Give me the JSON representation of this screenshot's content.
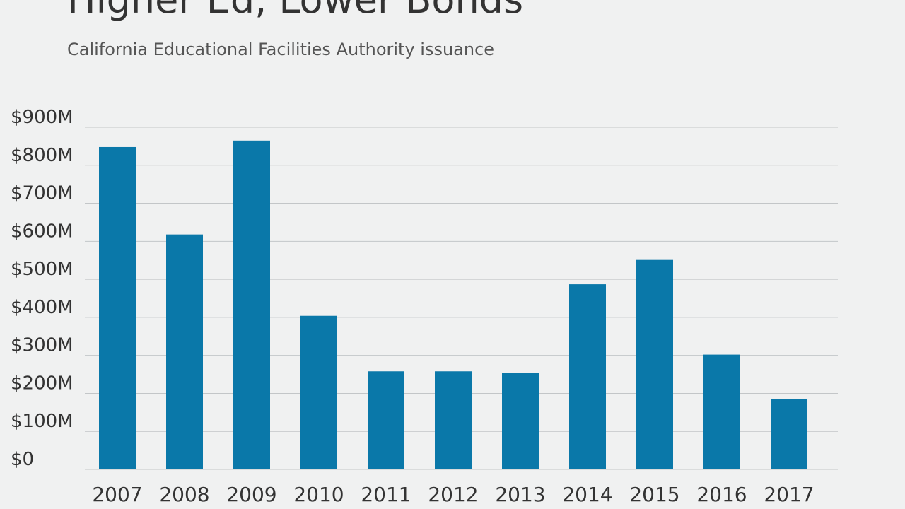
{
  "title": "Higher Ed, Lower Bonds",
  "subtitle": "California Educational Facilities Authority issuance",
  "colors": {
    "bar": "#0a78a9",
    "grid": "#c3c6c8",
    "background": "#f0f1f1"
  },
  "chart_data": {
    "type": "bar",
    "title": "Higher Ed, Lower Bonds",
    "subtitle": "California Educational Facilities Authority issuance",
    "categories": [
      "2007",
      "2008",
      "2009",
      "2010",
      "2011",
      "2012",
      "2013",
      "2014",
      "2015",
      "2016",
      "2017"
    ],
    "values": [
      848,
      618,
      865,
      404,
      258,
      258,
      254,
      487,
      551,
      302,
      185
    ],
    "units": "$M",
    "ylim": [
      0,
      900
    ],
    "yticks": [
      0,
      100,
      200,
      300,
      400,
      500,
      600,
      700,
      800,
      900
    ],
    "ytick_labels": [
      "$0",
      "$100M",
      "$200M",
      "$300M",
      "$400M",
      "$500M",
      "$600M",
      "$700M",
      "$800M",
      "$900M"
    ],
    "xlabel": "",
    "ylabel": "",
    "grid": true,
    "legend": "none"
  }
}
